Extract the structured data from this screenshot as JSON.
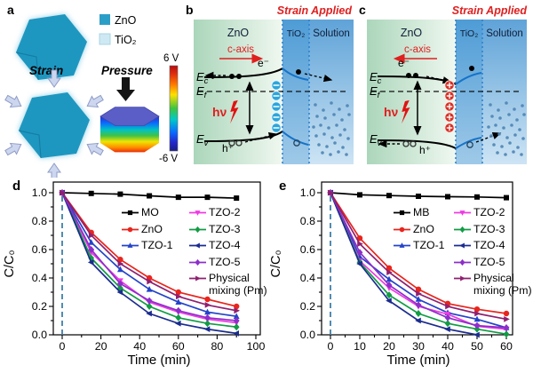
{
  "figure": {
    "panel_labels": {
      "a": "a",
      "b": "b",
      "c": "c",
      "d": "d",
      "e": "e"
    }
  },
  "panel_a": {
    "legend": [
      {
        "label": "ZnO",
        "color": "#2b9ec7"
      },
      {
        "label": "TiO₂",
        "color": "#cfe9f4"
      }
    ],
    "strain_label": "Strain",
    "pressure_label": "Pressure",
    "colorbar": {
      "top_label": "6 V",
      "bottom_label": "-6 V"
    }
  },
  "panel_b": {
    "strain_applied": "Strain Applied",
    "regions": {
      "zno": "ZnO",
      "tio2": "TiO₂",
      "solution": "Solution"
    },
    "c_axis": "c-axis",
    "electron": "e⁻",
    "hole": "h⁺",
    "photon": "hν",
    "bands": {
      "ec_m": "E",
      "ec_s": "c",
      "ef_m": "E",
      "ef_s": "f",
      "ev_m": "E",
      "ev_s": "v"
    }
  },
  "panel_c": {
    "strain_applied": "Strain Applied",
    "regions": {
      "zno": "ZnO",
      "tio2": "TiO₂",
      "solution": "Solution"
    },
    "c_axis": "c-axis",
    "electron": "e⁻",
    "hole": "h⁺",
    "photon": "hν",
    "bands": {
      "ec_m": "E",
      "ec_s": "c",
      "ef_m": "E",
      "ef_s": "f",
      "ev_m": "E",
      "ev_s": "v"
    }
  },
  "chart_data": [
    {
      "type": "line",
      "panel": "d",
      "xlabel": "Time (min)",
      "ylabel": "C/C₀",
      "xlim": [
        0,
        100
      ],
      "ylim": [
        0,
        1
      ],
      "xticks": [
        0,
        20,
        40,
        60,
        80,
        100
      ],
      "xminor": 10,
      "yticks": [
        0,
        0.2,
        0.4,
        0.6,
        0.8,
        1.0
      ],
      "yminor": 0.1,
      "guide_x": 0,
      "guide_color": "#3f7fa9",
      "x": [
        0,
        15,
        30,
        45,
        60,
        75,
        90
      ],
      "series": [
        {
          "name": "MO",
          "color": "#000000",
          "marker": "square",
          "values": [
            1.0,
            0.995,
            0.99,
            0.978,
            0.968,
            0.968,
            0.962
          ]
        },
        {
          "name": "ZnO",
          "color": "#e8251d",
          "marker": "circle",
          "values": [
            1.0,
            0.72,
            0.53,
            0.4,
            0.3,
            0.25,
            0.2
          ]
        },
        {
          "name": "TZO-1",
          "color": "#2443c9",
          "marker": "tri-up",
          "values": [
            1.0,
            0.65,
            0.46,
            0.32,
            0.23,
            0.16,
            0.13
          ]
        },
        {
          "name": "TZO-2",
          "color": "#ee3ae2",
          "marker": "tri-down",
          "values": [
            1.0,
            0.58,
            0.38,
            0.23,
            0.16,
            0.11,
            0.085
          ]
        },
        {
          "name": "TZO-3",
          "color": "#119c44",
          "marker": "diamond",
          "values": [
            1.0,
            0.54,
            0.33,
            0.2,
            0.12,
            0.08,
            0.055
          ]
        },
        {
          "name": "TZO-4",
          "color": "#1b2c8f",
          "marker": "tri-left",
          "values": [
            1.0,
            0.51,
            0.3,
            0.15,
            0.08,
            0.04,
            0.01
          ]
        },
        {
          "name": "TZO-5",
          "color": "#8c2fc9",
          "marker": "diamond",
          "values": [
            1.0,
            0.6,
            0.36,
            0.24,
            0.17,
            0.12,
            0.1
          ]
        },
        {
          "name": "Physical mixing (Pm)",
          "color": "#8e2070",
          "marker": "tri-right",
          "values": [
            1.0,
            0.7,
            0.5,
            0.375,
            0.27,
            0.21,
            0.17
          ]
        }
      ]
    },
    {
      "type": "line",
      "panel": "e",
      "xlabel": "Time (min)",
      "ylabel": "C/C₀",
      "xlim": [
        0,
        60
      ],
      "ylim": [
        0,
        1
      ],
      "xticks": [
        0,
        10,
        20,
        30,
        40,
        50,
        60
      ],
      "xminor": 5,
      "yticks": [
        0,
        0.2,
        0.4,
        0.6,
        0.8,
        1.0
      ],
      "yminor": 0.1,
      "guide_x": 0,
      "guide_color": "#3f7fa9",
      "x": [
        0,
        10,
        20,
        30,
        40,
        50,
        60
      ],
      "series": [
        {
          "name": "MB",
          "color": "#000000",
          "marker": "square",
          "values": [
            1.0,
            0.985,
            0.98,
            0.975,
            0.972,
            0.97,
            0.965
          ]
        },
        {
          "name": "ZnO",
          "color": "#e8251d",
          "marker": "circle",
          "values": [
            1.0,
            0.68,
            0.47,
            0.32,
            0.22,
            0.18,
            0.15
          ]
        },
        {
          "name": "TZO-1",
          "color": "#2443c9",
          "marker": "tri-up",
          "values": [
            1.0,
            0.55,
            0.39,
            0.25,
            0.155,
            0.11,
            0.05
          ]
        },
        {
          "name": "TZO-2",
          "color": "#ee3ae2",
          "marker": "tri-down",
          "values": [
            1.0,
            0.52,
            0.33,
            0.2,
            0.145,
            0.06,
            0.04
          ]
        },
        {
          "name": "TZO-3",
          "color": "#119c44",
          "marker": "diamond",
          "values": [
            1.0,
            0.51,
            0.28,
            0.15,
            0.08,
            0.04,
            0.005
          ]
        },
        {
          "name": "TZO-4",
          "color": "#1b2c8f",
          "marker": "tri-left",
          "values": [
            1.0,
            0.5,
            0.24,
            0.1,
            0.04,
            0.0,
            null
          ]
        },
        {
          "name": "TZO-5",
          "color": "#8c2fc9",
          "marker": "diamond",
          "values": [
            1.0,
            0.58,
            0.35,
            0.21,
            0.12,
            0.065,
            0.05
          ]
        },
        {
          "name": "Physical mixing (Pm)",
          "color": "#8e2070",
          "marker": "tri-right",
          "values": [
            1.0,
            0.64,
            0.44,
            0.29,
            0.2,
            0.15,
            0.11
          ]
        }
      ]
    }
  ],
  "colors": {
    "accent_red": "#e01f1f",
    "guide_blue": "#3f7fa9",
    "dotted_separator": "#2f82cf",
    "electron_circle": "#2aa6dc",
    "hole_circle": "#d93025",
    "hexagon_teal": "#1e97c0"
  }
}
